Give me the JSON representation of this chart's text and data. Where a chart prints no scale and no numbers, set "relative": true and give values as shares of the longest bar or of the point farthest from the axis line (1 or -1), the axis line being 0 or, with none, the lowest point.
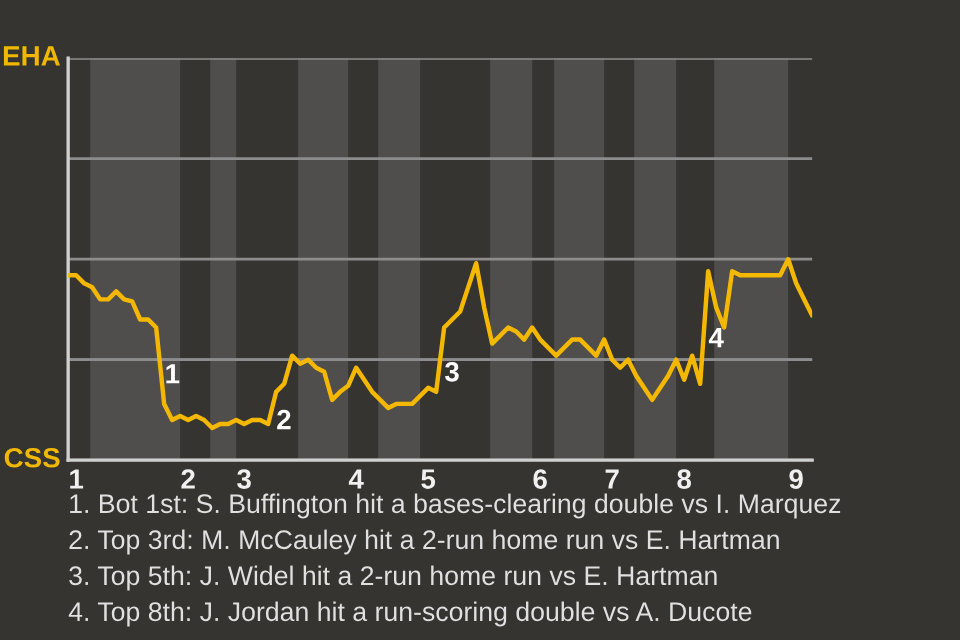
{
  "chart_data": {
    "type": "line",
    "relative": true,
    "categories": [
      null,
      "1",
      null,
      null,
      null,
      null,
      null,
      null,
      null,
      null,
      null,
      null,
      null,
      null,
      null,
      "2",
      null,
      null,
      null,
      null,
      null,
      null,
      "3",
      null,
      null,
      null,
      null,
      null,
      null,
      null,
      null,
      null,
      null,
      null,
      null,
      null,
      "4",
      null,
      null,
      null,
      null,
      null,
      null,
      null,
      null,
      "5",
      null,
      null,
      null,
      null,
      null,
      null,
      null,
      null,
      null,
      null,
      null,
      null,
      null,
      "6",
      null,
      null,
      null,
      null,
      null,
      null,
      null,
      null,
      "7",
      null,
      null,
      null,
      null,
      null,
      null,
      null,
      null,
      "8",
      null,
      null,
      null,
      null,
      null,
      null,
      null,
      null,
      null,
      null,
      null,
      null,
      null,
      "9",
      null,
      null
    ],
    "series": [
      {
        "color": "#f5b800",
        "values": [
          0.92,
          0.92,
          0.88,
          0.86,
          0.8,
          0.8,
          0.84,
          0.8,
          0.79,
          0.7,
          0.7,
          0.66,
          0.28,
          0.2,
          0.22,
          0.2,
          0.22,
          0.2,
          0.16,
          0.18,
          0.18,
          0.2,
          0.18,
          0.2,
          0.2,
          0.18,
          0.34,
          0.38,
          0.52,
          0.48,
          0.5,
          0.46,
          0.44,
          0.3,
          0.34,
          0.37,
          0.46,
          0.4,
          0.34,
          0.3,
          0.26,
          0.28,
          0.28,
          0.28,
          0.32,
          0.36,
          0.34,
          0.66,
          0.7,
          0.74,
          0.86,
          0.98,
          0.76,
          0.58,
          0.62,
          0.66,
          0.64,
          0.6,
          0.66,
          0.6,
          0.56,
          0.52,
          0.56,
          0.6,
          0.6,
          0.56,
          0.52,
          0.6,
          0.5,
          0.46,
          0.5,
          0.42,
          0.36,
          0.3,
          0.36,
          0.42,
          0.5,
          0.4,
          0.52,
          0.38,
          0.94,
          0.76,
          0.66,
          0.94,
          0.92,
          0.92,
          0.92,
          0.92,
          0.92,
          0.92,
          1,
          0.88,
          0.8,
          0.72
        ]
      }
    ],
    "grid": "y",
    "marker": "none",
    "line_style": "solid",
    "ref_lines": [
      {
        "axis": "y",
        "value": 0.5,
        "color": "#8c8c8c"
      }
    ],
    "annotations": [
      "EHA",
      "CSS",
      "1",
      "2",
      "3",
      "4",
      "1. Bot 1st: S. Buffington hit a bases-clearing double vs I. Marquez",
      "2. Top 3rd: M. McCauley hit a 2-run home run vs E. Hartman",
      "3. Top 5th: J. Widel hit a 2-run home run vs E. Hartman",
      "4. Top 8th: J. Jordan hit a run-scoring double vs A. Ducote"
    ]
  }
}
